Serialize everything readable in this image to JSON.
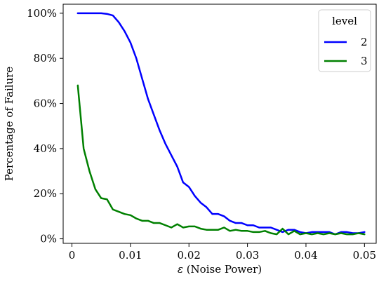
{
  "chart_data": {
    "type": "line",
    "xlabel_symbol": "ε",
    "xlabel_rest": " (Noise Power)",
    "ylabel": "Percentage of Failure",
    "xlim": [
      -0.0015,
      0.052
    ],
    "ylim": [
      -0.02,
      1.04
    ],
    "xticks": [
      0,
      0.01,
      0.02,
      0.03,
      0.04,
      0.05
    ],
    "xtick_labels": [
      "0",
      "0.01",
      "0.02",
      "0.03",
      "0.04",
      "0.05"
    ],
    "yticks": [
      0,
      0.2,
      0.4,
      0.6,
      0.8,
      1.0
    ],
    "ytick_labels": [
      "0%",
      "20%",
      "40%",
      "60%",
      "80%",
      "100%"
    ],
    "grid": false,
    "legend": {
      "title": "level",
      "placement": "top-right"
    },
    "x": [
      0.001,
      0.002,
      0.003,
      0.004,
      0.005,
      0.006,
      0.007,
      0.008,
      0.009,
      0.01,
      0.011,
      0.012,
      0.013,
      0.014,
      0.015,
      0.016,
      0.017,
      0.018,
      0.019,
      0.02,
      0.021,
      0.022,
      0.023,
      0.024,
      0.025,
      0.026,
      0.027,
      0.028,
      0.029,
      0.03,
      0.031,
      0.032,
      0.033,
      0.034,
      0.035,
      0.036,
      0.037,
      0.038,
      0.039,
      0.04,
      0.041,
      0.042,
      0.043,
      0.044,
      0.045,
      0.046,
      0.047,
      0.048,
      0.049,
      0.05
    ],
    "series": [
      {
        "name": "2",
        "color": "#0000ff",
        "values": [
          1.0,
          1.0,
          1.0,
          1.0,
          1.0,
          0.997,
          0.99,
          0.96,
          0.92,
          0.87,
          0.8,
          0.71,
          0.62,
          0.55,
          0.48,
          0.42,
          0.37,
          0.32,
          0.25,
          0.23,
          0.19,
          0.16,
          0.14,
          0.11,
          0.11,
          0.1,
          0.08,
          0.07,
          0.07,
          0.06,
          0.06,
          0.05,
          0.05,
          0.05,
          0.04,
          0.03,
          0.04,
          0.04,
          0.03,
          0.025,
          0.03,
          0.03,
          0.03,
          0.03,
          0.02,
          0.03,
          0.03,
          0.025,
          0.025,
          0.03
        ]
      },
      {
        "name": "3",
        "color": "#008000",
        "values": [
          0.68,
          0.4,
          0.3,
          0.22,
          0.18,
          0.175,
          0.13,
          0.12,
          0.11,
          0.105,
          0.09,
          0.08,
          0.08,
          0.07,
          0.07,
          0.06,
          0.05,
          0.065,
          0.05,
          0.055,
          0.055,
          0.045,
          0.04,
          0.04,
          0.04,
          0.05,
          0.035,
          0.04,
          0.035,
          0.035,
          0.03,
          0.03,
          0.035,
          0.025,
          0.02,
          0.045,
          0.02,
          0.035,
          0.02,
          0.025,
          0.02,
          0.025,
          0.02,
          0.025,
          0.02,
          0.025,
          0.02,
          0.02,
          0.025,
          0.02
        ]
      }
    ]
  }
}
